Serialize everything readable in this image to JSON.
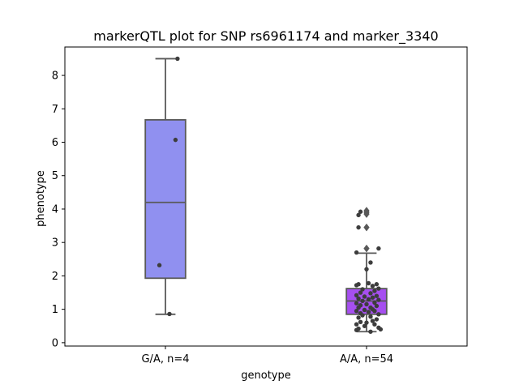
{
  "chart_data": {
    "type": "box",
    "title": "markerQTL plot for SNP rs6961174 and marker_3340",
    "xlabel": "genotype",
    "ylabel": "phenotype",
    "ylim": [
      -0.1,
      8.85
    ],
    "yticks": [
      0,
      1,
      2,
      3,
      4,
      5,
      6,
      7,
      8
    ],
    "categories": [
      "G/A, n=4",
      "A/A, n=54"
    ],
    "grid": false,
    "boxes": [
      {
        "category": "G/A, n=4",
        "color": "#9090f0",
        "q1": 1.93,
        "median": 4.2,
        "q3": 6.67,
        "whisker_low": 0.85,
        "whisker_high": 8.5,
        "outliers": [],
        "points": [
          {
            "x": 0.06,
            "y": 8.5
          },
          {
            "x": 0.05,
            "y": 6.07
          },
          {
            "x": -0.03,
            "y": 2.32
          },
          {
            "x": 0.02,
            "y": 0.86
          }
        ]
      },
      {
        "category": "A/A, n=54",
        "color": "#a64ff0",
        "q1": 0.85,
        "median": 1.25,
        "q3": 1.62,
        "whisker_low": 0.33,
        "whisker_high": 2.68,
        "outliers": [
          2.82,
          3.45,
          3.85,
          3.9,
          3.95
        ],
        "points": [
          {
            "x": -0.04,
            "y": 3.82
          },
          {
            "x": -0.03,
            "y": 3.92
          },
          {
            "x": -0.04,
            "y": 3.45
          },
          {
            "x": 0.06,
            "y": 2.82
          },
          {
            "x": -0.05,
            "y": 2.7
          },
          {
            "x": 0.02,
            "y": 2.4
          },
          {
            "x": 0.0,
            "y": 2.2
          },
          {
            "x": 0.05,
            "y": 1.75
          },
          {
            "x": -0.04,
            "y": 1.75
          },
          {
            "x": 0.03,
            "y": 1.7
          },
          {
            "x": -0.05,
            "y": 1.72
          },
          {
            "x": 0.01,
            "y": 1.78
          },
          {
            "x": 0.06,
            "y": 1.62
          },
          {
            "x": -0.02,
            "y": 1.6
          },
          {
            "x": 0.04,
            "y": 1.55
          },
          {
            "x": -0.03,
            "y": 1.5
          },
          {
            "x": 0.02,
            "y": 1.48
          },
          {
            "x": -0.05,
            "y": 1.42
          },
          {
            "x": 0.05,
            "y": 1.4
          },
          {
            "x": -0.01,
            "y": 1.38
          },
          {
            "x": 0.03,
            "y": 1.35
          },
          {
            "x": -0.04,
            "y": 1.32
          },
          {
            "x": 0.01,
            "y": 1.3
          },
          {
            "x": 0.06,
            "y": 1.28
          },
          {
            "x": -0.02,
            "y": 1.25
          },
          {
            "x": 0.04,
            "y": 1.2
          },
          {
            "x": -0.05,
            "y": 1.18
          },
          {
            "x": 0.0,
            "y": 1.15
          },
          {
            "x": -0.03,
            "y": 1.12
          },
          {
            "x": 0.05,
            "y": 1.1
          },
          {
            "x": 0.02,
            "y": 1.05
          },
          {
            "x": -0.04,
            "y": 1.05
          },
          {
            "x": 0.03,
            "y": 1.0
          },
          {
            "x": -0.01,
            "y": 0.98
          },
          {
            "x": -0.05,
            "y": 0.95
          },
          {
            "x": 0.04,
            "y": 0.95
          },
          {
            "x": 0.01,
            "y": 0.92
          },
          {
            "x": -0.03,
            "y": 0.88
          },
          {
            "x": 0.06,
            "y": 0.85
          },
          {
            "x": -0.02,
            "y": 0.82
          },
          {
            "x": 0.02,
            "y": 0.78
          },
          {
            "x": -0.04,
            "y": 0.75
          },
          {
            "x": 0.05,
            "y": 0.7
          },
          {
            "x": 0.03,
            "y": 0.65
          },
          {
            "x": -0.03,
            "y": 0.62
          },
          {
            "x": 0.0,
            "y": 0.6
          },
          {
            "x": -0.05,
            "y": 0.55
          },
          {
            "x": 0.04,
            "y": 0.55
          },
          {
            "x": -0.01,
            "y": 0.5
          },
          {
            "x": 0.06,
            "y": 0.45
          },
          {
            "x": -0.04,
            "y": 0.42
          },
          {
            "x": 0.07,
            "y": 0.4
          },
          {
            "x": -0.05,
            "y": 0.38
          },
          {
            "x": 0.02,
            "y": 0.33
          }
        ]
      }
    ]
  }
}
